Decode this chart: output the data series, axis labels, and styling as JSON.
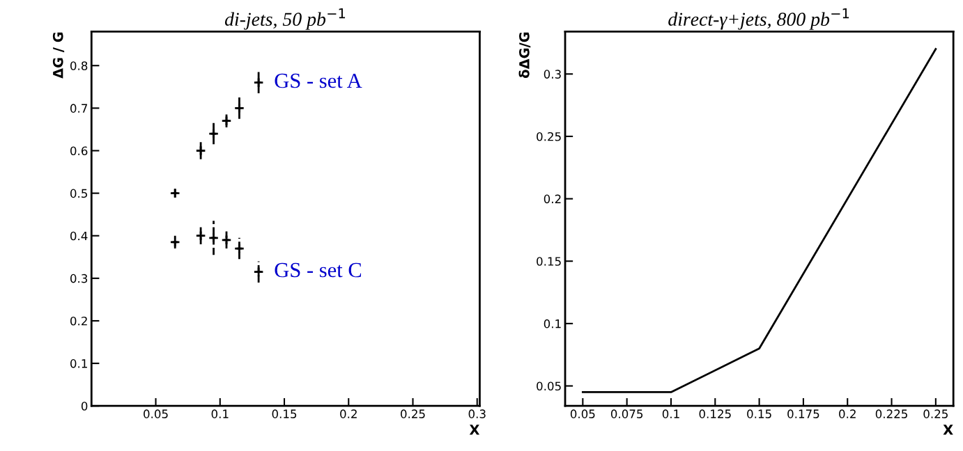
{
  "chart_data": [
    {
      "type": "scatter",
      "title": "di-jets, 50 pb$^{−1}$",
      "xlabel": "X",
      "ylabel": "ΔG / G",
      "xlim": [
        0,
        0.302
      ],
      "ylim": [
        0,
        0.88
      ],
      "xticks": [
        0.05,
        0.1,
        0.15,
        0.2,
        0.25,
        0.3
      ],
      "yticks": [
        0,
        0.1,
        0.2,
        0.3,
        0.4,
        0.5,
        0.6,
        0.7,
        0.8
      ],
      "marker": "cross",
      "grid": false,
      "legend": false,
      "series": [
        {
          "name": "GS - set A",
          "color": "#000000",
          "line_style": "solid",
          "x": [
            0.065,
            0.085,
            0.095,
            0.105,
            0.115,
            0.13
          ],
          "values": [
            0.5,
            0.6,
            0.64,
            0.67,
            0.7,
            0.76
          ],
          "errors": [
            0.01,
            0.02,
            0.025,
            0.015,
            0.025,
            0.025
          ],
          "xerrors": [
            0.002,
            0.002,
            0.002,
            0.002,
            0.002,
            0.002
          ]
        },
        {
          "name": "GS - set C",
          "color": "#000000",
          "line_style": "dashed",
          "x": [
            0.065,
            0.085,
            0.095,
            0.105,
            0.115,
            0.13
          ],
          "values": [
            0.385,
            0.4,
            0.395,
            0.39,
            0.37,
            0.315
          ],
          "errors": [
            0.015,
            0.02,
            0.04,
            0.02,
            0.025,
            0.025
          ],
          "xerrors": [
            0.002,
            0.002,
            0.002,
            0.002,
            0.002,
            0.002
          ]
        }
      ]
    },
    {
      "type": "line",
      "title": "direct-γ+jets, 800 pb$^{−1}$",
      "xlabel": "X",
      "ylabel": "δΔG/G",
      "xlim": [
        0.04,
        0.26
      ],
      "ylim": [
        0.034,
        0.334
      ],
      "xticks": [
        0.05,
        0.075,
        0.1,
        0.125,
        0.15,
        0.175,
        0.2,
        0.225,
        0.25
      ],
      "yticks": [
        0.05,
        0.1,
        0.15,
        0.2,
        0.25,
        0.3
      ],
      "marker": "none",
      "grid": false,
      "legend": false,
      "line_style": "solid",
      "series": [
        {
          "color": "#000000",
          "x": [
            0.05,
            0.1,
            0.15,
            0.25
          ],
          "values": [
            0.045,
            0.045,
            0.08,
            0.32
          ]
        }
      ]
    }
  ]
}
